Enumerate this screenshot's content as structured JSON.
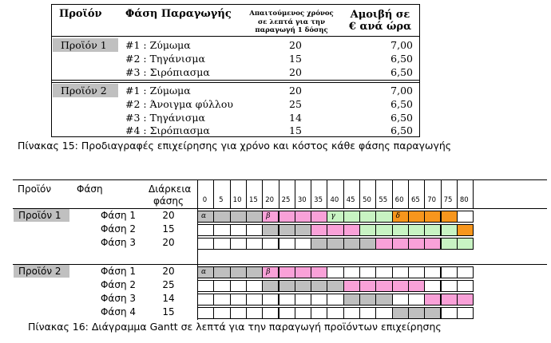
{
  "table15": {
    "headers": {
      "product": "Προϊόν",
      "phase": "Φάση Παραγωγής",
      "time_lines": [
        "Απαιτούμενος χρόνος",
        "σε λεπτά για την",
        "παραγωγή 1 δόσης"
      ],
      "pay_lines": [
        "Αμοιβή σε",
        "€ ανά ώρα"
      ]
    },
    "products": [
      {
        "name": "Προϊόν 1",
        "rows": [
          {
            "phase": "#1 : Ζύμωμα",
            "time": "20",
            "cost": "7,00"
          },
          {
            "phase": "#2 : Τηγάνισμα",
            "time": "15",
            "cost": "6,50"
          },
          {
            "phase": "#3 : Σιρόπιασμα",
            "time": "20",
            "cost": "6,50"
          }
        ]
      },
      {
        "name": "Προϊόν 2",
        "rows": [
          {
            "phase": "#1 : Ζύμωμα",
            "time": "20",
            "cost": "7,00"
          },
          {
            "phase": "#2 : Άνοιγμα φύλλου",
            "time": "25",
            "cost": "6,50"
          },
          {
            "phase": "#3 : Τηγάνισμα",
            "time": "14",
            "cost": "6,50"
          },
          {
            "phase": "#4 : Σιρόπιασμα",
            "time": "15",
            "cost": "6,50"
          }
        ]
      }
    ],
    "caption": "Πίνακας 15: Προδιαγραφές επιχείρησης για χρόνο και κόστος κάθε φάσης παραγωγής"
  },
  "gantt": {
    "headers": {
      "product": "Προϊόν",
      "phase": "Φάση",
      "duration_lines": [
        "Διάρκεια",
        "φάσης"
      ]
    },
    "ticks": [
      "0",
      "5",
      "10",
      "15",
      "20",
      "25",
      "30",
      "35",
      "40",
      "45",
      "50",
      "55",
      "60",
      "65",
      "70",
      "75",
      "80"
    ],
    "colors": {
      "gray": "#bfbfbf",
      "pink": "#f9a1d8",
      "green": "#c8f3c3",
      "orange": "#f7961d",
      "white": "#ffffff"
    },
    "products": [
      {
        "name": "Προϊόν 1",
        "rows": [
          {
            "phase": "Φάση 1",
            "duration": "20",
            "cells": [
              "gray",
              "gray",
              "gray",
              "gray",
              "pink",
              "pink",
              "pink",
              "pink",
              "green",
              "green",
              "green",
              "green",
              "orange",
              "orange",
              "orange",
              "orange",
              "white"
            ],
            "labels": [
              {
                "col": 0,
                "text": "α"
              },
              {
                "col": 4,
                "text": "β"
              },
              {
                "col": 8,
                "text": "γ"
              },
              {
                "col": 12,
                "text": "δ"
              }
            ]
          },
          {
            "phase": "Φάση 2",
            "duration": "15",
            "cells": [
              "white",
              "white",
              "white",
              "white",
              "gray",
              "gray",
              "gray",
              "pink",
              "pink",
              "pink",
              "green",
              "green",
              "green",
              "green",
              "green",
              "green",
              "orange"
            ],
            "labels": []
          },
          {
            "phase": "Φάση 3",
            "duration": "20",
            "cells": [
              "white",
              "white",
              "white",
              "white",
              "white",
              "white",
              "white",
              "gray",
              "gray",
              "gray",
              "gray",
              "pink",
              "pink",
              "pink",
              "pink",
              "green",
              "green"
            ],
            "labels": []
          }
        ]
      },
      {
        "name": "Προϊόν 2",
        "rows": [
          {
            "phase": "Φάση 1",
            "duration": "20",
            "cells": [
              "gray",
              "gray",
              "gray",
              "gray",
              "pink",
              "pink",
              "pink",
              "pink",
              "white",
              "white",
              "white",
              "white",
              "white",
              "white",
              "white",
              "white",
              "white"
            ],
            "labels": [
              {
                "col": 0,
                "text": "α"
              },
              {
                "col": 4,
                "text": "β"
              }
            ]
          },
          {
            "phase": "Φάση 2",
            "duration": "25",
            "cells": [
              "white",
              "white",
              "white",
              "white",
              "gray",
              "gray",
              "gray",
              "gray",
              "gray",
              "pink",
              "pink",
              "pink",
              "pink",
              "pink",
              "white",
              "white",
              "white"
            ],
            "labels": []
          },
          {
            "phase": "Φάση 3",
            "duration": "14",
            "cells": [
              "white",
              "white",
              "white",
              "white",
              "white",
              "white",
              "white",
              "white",
              "white",
              "gray",
              "gray",
              "gray",
              "white",
              "white",
              "pink",
              "pink",
              "pink"
            ],
            "labels": []
          },
          {
            "phase": "Φάση 4",
            "duration": "15",
            "cells": [
              "white",
              "white",
              "white",
              "white",
              "white",
              "white",
              "white",
              "white",
              "white",
              "white",
              "white",
              "white",
              "gray",
              "gray",
              "gray",
              "white",
              "white"
            ],
            "labels": []
          }
        ]
      }
    ],
    "caption": "Πίνακας 16: Διάγραμμα Gantt σε λεπτά για την παραγωγή προϊόντων επιχείρησης"
  }
}
